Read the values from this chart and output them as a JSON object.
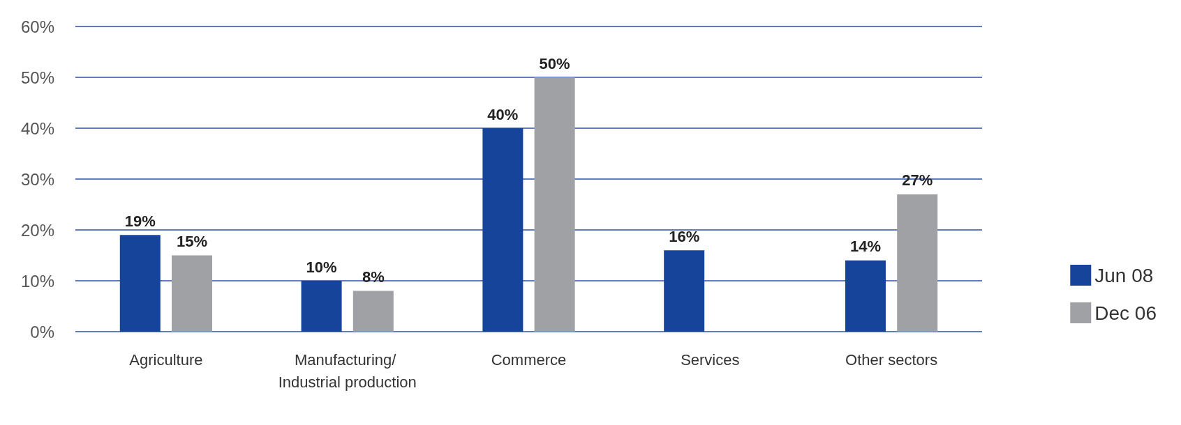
{
  "chart_data": {
    "type": "bar",
    "categories": [
      "Agriculture",
      "Manufacturing/ Industrial production",
      "Commerce",
      "Services",
      "Other sectors"
    ],
    "series": [
      {
        "name": "Jun 08",
        "color": "#16449a",
        "values": [
          19,
          10,
          40,
          16,
          14
        ],
        "value_labels": [
          "19%",
          "10%",
          "40%",
          "16%",
          "14%"
        ]
      },
      {
        "name": "Dec 06",
        "color": "#a0a1a5",
        "values": [
          15,
          8,
          50,
          null,
          27
        ],
        "value_labels": [
          "15%",
          "8%",
          "50%",
          null,
          "27%"
        ]
      }
    ],
    "ylim": [
      0,
      60
    ],
    "yticks": [
      {
        "value": 0,
        "label": "0%"
      },
      {
        "value": 10,
        "label": "10%"
      },
      {
        "value": 20,
        "label": "20%"
      },
      {
        "value": 30,
        "label": "30%"
      },
      {
        "value": 40,
        "label": "40%"
      },
      {
        "value": 50,
        "label": "50%"
      },
      {
        "value": 60,
        "label": "60%"
      }
    ],
    "grid": "y",
    "legend": "right"
  }
}
